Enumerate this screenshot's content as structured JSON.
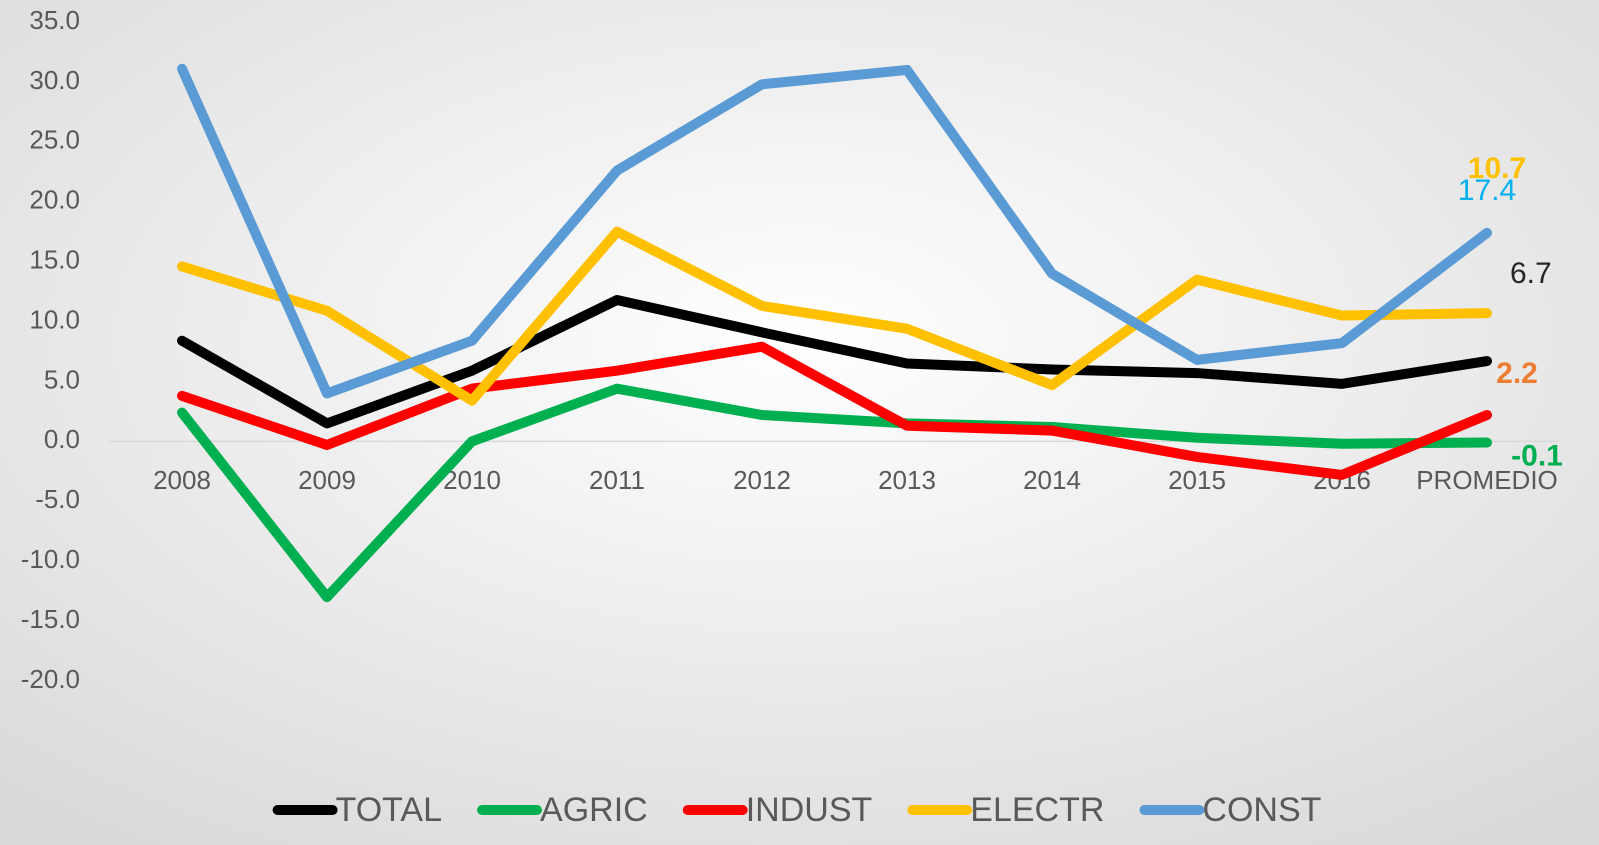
{
  "chart_data": {
    "type": "line",
    "categories": [
      "2008",
      "2009",
      "2010",
      "2011",
      "2012",
      "2013",
      "2014",
      "2015",
      "2016",
      "PROMEDIO"
    ],
    "series": [
      {
        "name": "TOTAL",
        "color": "#000000",
        "label_color": "#262626",
        "values": [
          8.4,
          1.5,
          5.9,
          11.8,
          9.1,
          6.5,
          6.0,
          5.7,
          4.8,
          6.7
        ]
      },
      {
        "name": "AGRIC",
        "color": "#00b050",
        "label_color": "#00b050",
        "values": [
          2.4,
          -13.0,
          0.0,
          4.4,
          2.2,
          1.5,
          1.2,
          0.3,
          -0.2,
          -0.1
        ]
      },
      {
        "name": "INDUST",
        "color": "#ff0000",
        "label_color": "#ed7d31",
        "values": [
          3.8,
          -0.3,
          4.4,
          5.9,
          7.9,
          1.3,
          0.9,
          -1.3,
          -2.8,
          2.2
        ]
      },
      {
        "name": "ELECTR",
        "color": "#ffc000",
        "label_color": "#ffc000",
        "values": [
          14.6,
          10.9,
          3.4,
          17.5,
          11.3,
          9.4,
          4.7,
          13.5,
          10.5,
          10.7
        ]
      },
      {
        "name": "CONST",
        "color": "#5b9bd5",
        "label_color": "#00b0f0",
        "values": [
          31.1,
          4.0,
          8.4,
          22.6,
          29.8,
          31.0,
          14.0,
          6.8,
          8.2,
          17.4
        ]
      }
    ],
    "ylim": [
      -20,
      35
    ],
    "yticks": [
      {
        "value": -20,
        "label": "-20.0"
      },
      {
        "value": -15,
        "label": "-15.0"
      },
      {
        "value": -10,
        "label": "-10.0"
      },
      {
        "value": -5,
        "label": "-5.0"
      },
      {
        "value": 0,
        "label": "0.0"
      },
      {
        "value": 5,
        "label": "5.0"
      },
      {
        "value": 10,
        "label": "10.0"
      },
      {
        "value": 15,
        "label": "15.0"
      },
      {
        "value": 20,
        "label": "20.0"
      },
      {
        "value": 25,
        "label": "25.0"
      },
      {
        "value": 30,
        "label": "30.0"
      },
      {
        "value": 35,
        "label": "35.0"
      }
    ],
    "grid": false,
    "legend": "bottom"
  }
}
